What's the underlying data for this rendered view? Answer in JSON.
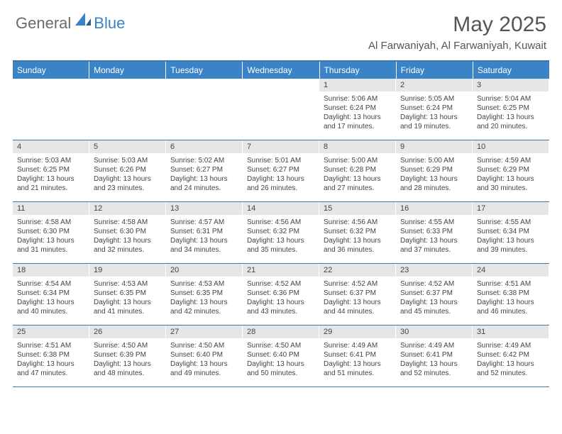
{
  "logo": {
    "word1": "General",
    "word2": "Blue"
  },
  "title": "May 2025",
  "location": "Al Farwaniyah, Al Farwaniyah, Kuwait",
  "colors": {
    "header_bg": "#3a83c6",
    "border": "#3a77b0",
    "daynum_bg": "#e6e6e6",
    "text": "#444444",
    "logo_gray": "#6a6a6a",
    "logo_blue": "#3a83c6",
    "background": "#ffffff"
  },
  "fonts": {
    "title_size": 30,
    "location_size": 15,
    "weekday_size": 12,
    "body_size": 10
  },
  "weekdays": [
    "Sunday",
    "Monday",
    "Tuesday",
    "Wednesday",
    "Thursday",
    "Friday",
    "Saturday"
  ],
  "weeks": [
    [
      {
        "day": "",
        "sunrise": "",
        "sunset": "",
        "daylight": ""
      },
      {
        "day": "",
        "sunrise": "",
        "sunset": "",
        "daylight": ""
      },
      {
        "day": "",
        "sunrise": "",
        "sunset": "",
        "daylight": ""
      },
      {
        "day": "",
        "sunrise": "",
        "sunset": "",
        "daylight": ""
      },
      {
        "day": "1",
        "sunrise": "Sunrise: 5:06 AM",
        "sunset": "Sunset: 6:24 PM",
        "daylight": "Daylight: 13 hours and 17 minutes."
      },
      {
        "day": "2",
        "sunrise": "Sunrise: 5:05 AM",
        "sunset": "Sunset: 6:24 PM",
        "daylight": "Daylight: 13 hours and 19 minutes."
      },
      {
        "day": "3",
        "sunrise": "Sunrise: 5:04 AM",
        "sunset": "Sunset: 6:25 PM",
        "daylight": "Daylight: 13 hours and 20 minutes."
      }
    ],
    [
      {
        "day": "4",
        "sunrise": "Sunrise: 5:03 AM",
        "sunset": "Sunset: 6:25 PM",
        "daylight": "Daylight: 13 hours and 21 minutes."
      },
      {
        "day": "5",
        "sunrise": "Sunrise: 5:03 AM",
        "sunset": "Sunset: 6:26 PM",
        "daylight": "Daylight: 13 hours and 23 minutes."
      },
      {
        "day": "6",
        "sunrise": "Sunrise: 5:02 AM",
        "sunset": "Sunset: 6:27 PM",
        "daylight": "Daylight: 13 hours and 24 minutes."
      },
      {
        "day": "7",
        "sunrise": "Sunrise: 5:01 AM",
        "sunset": "Sunset: 6:27 PM",
        "daylight": "Daylight: 13 hours and 26 minutes."
      },
      {
        "day": "8",
        "sunrise": "Sunrise: 5:00 AM",
        "sunset": "Sunset: 6:28 PM",
        "daylight": "Daylight: 13 hours and 27 minutes."
      },
      {
        "day": "9",
        "sunrise": "Sunrise: 5:00 AM",
        "sunset": "Sunset: 6:29 PM",
        "daylight": "Daylight: 13 hours and 28 minutes."
      },
      {
        "day": "10",
        "sunrise": "Sunrise: 4:59 AM",
        "sunset": "Sunset: 6:29 PM",
        "daylight": "Daylight: 13 hours and 30 minutes."
      }
    ],
    [
      {
        "day": "11",
        "sunrise": "Sunrise: 4:58 AM",
        "sunset": "Sunset: 6:30 PM",
        "daylight": "Daylight: 13 hours and 31 minutes."
      },
      {
        "day": "12",
        "sunrise": "Sunrise: 4:58 AM",
        "sunset": "Sunset: 6:30 PM",
        "daylight": "Daylight: 13 hours and 32 minutes."
      },
      {
        "day": "13",
        "sunrise": "Sunrise: 4:57 AM",
        "sunset": "Sunset: 6:31 PM",
        "daylight": "Daylight: 13 hours and 34 minutes."
      },
      {
        "day": "14",
        "sunrise": "Sunrise: 4:56 AM",
        "sunset": "Sunset: 6:32 PM",
        "daylight": "Daylight: 13 hours and 35 minutes."
      },
      {
        "day": "15",
        "sunrise": "Sunrise: 4:56 AM",
        "sunset": "Sunset: 6:32 PM",
        "daylight": "Daylight: 13 hours and 36 minutes."
      },
      {
        "day": "16",
        "sunrise": "Sunrise: 4:55 AM",
        "sunset": "Sunset: 6:33 PM",
        "daylight": "Daylight: 13 hours and 37 minutes."
      },
      {
        "day": "17",
        "sunrise": "Sunrise: 4:55 AM",
        "sunset": "Sunset: 6:34 PM",
        "daylight": "Daylight: 13 hours and 39 minutes."
      }
    ],
    [
      {
        "day": "18",
        "sunrise": "Sunrise: 4:54 AM",
        "sunset": "Sunset: 6:34 PM",
        "daylight": "Daylight: 13 hours and 40 minutes."
      },
      {
        "day": "19",
        "sunrise": "Sunrise: 4:53 AM",
        "sunset": "Sunset: 6:35 PM",
        "daylight": "Daylight: 13 hours and 41 minutes."
      },
      {
        "day": "20",
        "sunrise": "Sunrise: 4:53 AM",
        "sunset": "Sunset: 6:35 PM",
        "daylight": "Daylight: 13 hours and 42 minutes."
      },
      {
        "day": "21",
        "sunrise": "Sunrise: 4:52 AM",
        "sunset": "Sunset: 6:36 PM",
        "daylight": "Daylight: 13 hours and 43 minutes."
      },
      {
        "day": "22",
        "sunrise": "Sunrise: 4:52 AM",
        "sunset": "Sunset: 6:37 PM",
        "daylight": "Daylight: 13 hours and 44 minutes."
      },
      {
        "day": "23",
        "sunrise": "Sunrise: 4:52 AM",
        "sunset": "Sunset: 6:37 PM",
        "daylight": "Daylight: 13 hours and 45 minutes."
      },
      {
        "day": "24",
        "sunrise": "Sunrise: 4:51 AM",
        "sunset": "Sunset: 6:38 PM",
        "daylight": "Daylight: 13 hours and 46 minutes."
      }
    ],
    [
      {
        "day": "25",
        "sunrise": "Sunrise: 4:51 AM",
        "sunset": "Sunset: 6:38 PM",
        "daylight": "Daylight: 13 hours and 47 minutes."
      },
      {
        "day": "26",
        "sunrise": "Sunrise: 4:50 AM",
        "sunset": "Sunset: 6:39 PM",
        "daylight": "Daylight: 13 hours and 48 minutes."
      },
      {
        "day": "27",
        "sunrise": "Sunrise: 4:50 AM",
        "sunset": "Sunset: 6:40 PM",
        "daylight": "Daylight: 13 hours and 49 minutes."
      },
      {
        "day": "28",
        "sunrise": "Sunrise: 4:50 AM",
        "sunset": "Sunset: 6:40 PM",
        "daylight": "Daylight: 13 hours and 50 minutes."
      },
      {
        "day": "29",
        "sunrise": "Sunrise: 4:49 AM",
        "sunset": "Sunset: 6:41 PM",
        "daylight": "Daylight: 13 hours and 51 minutes."
      },
      {
        "day": "30",
        "sunrise": "Sunrise: 4:49 AM",
        "sunset": "Sunset: 6:41 PM",
        "daylight": "Daylight: 13 hours and 52 minutes."
      },
      {
        "day": "31",
        "sunrise": "Sunrise: 4:49 AM",
        "sunset": "Sunset: 6:42 PM",
        "daylight": "Daylight: 13 hours and 52 minutes."
      }
    ]
  ]
}
